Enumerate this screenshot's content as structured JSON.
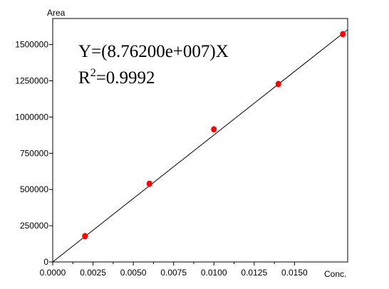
{
  "chart_data": {
    "type": "scatter",
    "ylabel": "Area",
    "xlabel": "Conc.",
    "xlim": [
      0,
      0.0183
    ],
    "ylim": [
      0,
      1680000
    ],
    "x_ticks": [
      0,
      0.0025,
      0.005,
      0.0075,
      0.01,
      0.0125,
      0.015
    ],
    "x_tick_labels": [
      "0.0000",
      "0.0025",
      "0.0050",
      "0.0075",
      "0.0100",
      "0.0125",
      "0.0150"
    ],
    "y_ticks": [
      0,
      250000,
      500000,
      750000,
      1000000,
      1250000,
      1500000
    ],
    "y_tick_labels": [
      "0",
      "250000",
      "500000",
      "750000",
      "1000000",
      "1250000",
      "1500000"
    ],
    "points": {
      "x": [
        0.002,
        0.006,
        0.01,
        0.014,
        0.018
      ],
      "y": [
        178000,
        540000,
        915000,
        1228000,
        1572000
      ],
      "color": "#ff0000"
    },
    "fit": {
      "slope": 87620000,
      "color": "#000000"
    },
    "equation": {
      "lead": "Y=(8.76200e+007)X"
    },
    "r_squared": {
      "base": "R",
      "exp": "2",
      "tail": "=0.9992"
    },
    "grid": false,
    "legend": "none"
  }
}
